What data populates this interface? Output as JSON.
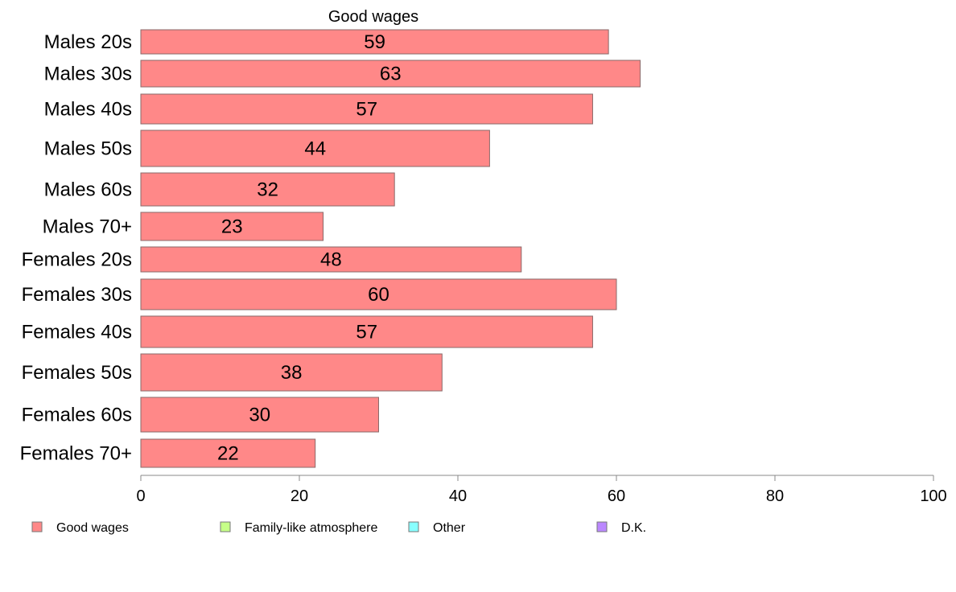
{
  "chart_data": {
    "type": "bar",
    "orientation": "horizontal",
    "title": "Good wages",
    "categories": [
      "Males 20s",
      "Males 30s",
      "Males 40s",
      "Males 50s",
      "Males 60s",
      "Males 70+",
      "Females 20s",
      "Females 30s",
      "Females 40s",
      "Females 50s",
      "Females 60s",
      "Females 70+"
    ],
    "series": [
      {
        "name": "Good wages",
        "color": "#ff8888",
        "values": [
          59,
          63,
          57,
          44,
          32,
          23,
          48,
          60,
          57,
          38,
          30,
          22
        ]
      }
    ],
    "xlim": [
      0,
      100
    ],
    "xticks": [
      0,
      20,
      40,
      60,
      80,
      100
    ],
    "grid": false,
    "legend": {
      "position": "bottom",
      "items": [
        {
          "label": "Good wages",
          "color": "#ff8888"
        },
        {
          "label": "Family-like atmosphere",
          "color": "#c6ff88"
        },
        {
          "label": "Other",
          "color": "#88ffff"
        },
        {
          "label": "D.K.",
          "color": "#bb88ff"
        }
      ]
    }
  }
}
